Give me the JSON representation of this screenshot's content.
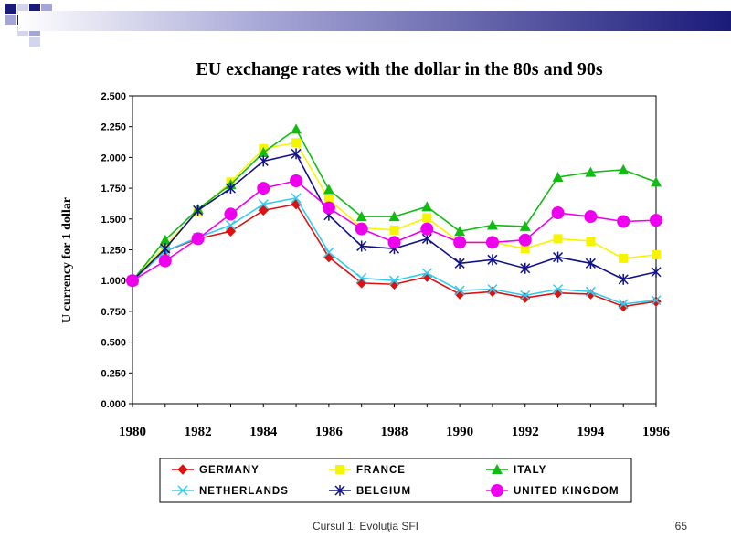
{
  "slide": {
    "footer_text": "Cursul 1: Evoluţia SFI",
    "page_number": "65",
    "theme_colors": {
      "navy": "#1a1a7a",
      "lavender": "#a6a6d6",
      "light": "#d4d4ec"
    }
  },
  "chart_data": {
    "type": "line",
    "title": "EU exchange rates with the dollar in the 80s and 90s",
    "ylabel": "U currency for 1 dollar",
    "xlabel": "",
    "xlim": [
      1980,
      1996
    ],
    "ylim": [
      0,
      2.5
    ],
    "x_ticks": [
      "1980",
      "1982",
      "1984",
      "1986",
      "1988",
      "1990",
      "1992",
      "1994",
      "1996"
    ],
    "y_ticks": [
      "0.000",
      "0.250",
      "0.500",
      "0.750",
      "1.000",
      "1.250",
      "1.500",
      "1.750",
      "2.000",
      "2.250",
      "2.500"
    ],
    "grid": false,
    "legend_position": "bottom",
    "x": [
      1980,
      1981,
      1982,
      1983,
      1984,
      1985,
      1986,
      1987,
      1988,
      1989,
      1990,
      1991,
      1992,
      1993,
      1994,
      1995,
      1996
    ],
    "series": [
      {
        "name": "GERMANY",
        "color": "#dd1111",
        "marker": "diamond",
        "values": [
          1.0,
          1.24,
          1.34,
          1.4,
          1.57,
          1.62,
          1.19,
          0.98,
          0.97,
          1.03,
          0.89,
          0.91,
          0.86,
          0.9,
          0.89,
          0.79,
          0.83
        ]
      },
      {
        "name": "FRANCE",
        "color": "#f5f500",
        "marker": "square",
        "values": [
          1.0,
          1.28,
          1.56,
          1.8,
          2.07,
          2.12,
          1.66,
          1.43,
          1.41,
          1.51,
          1.31,
          1.31,
          1.26,
          1.34,
          1.32,
          1.18,
          1.21
        ]
      },
      {
        "name": "ITALY",
        "color": "#11bb11",
        "marker": "triangle",
        "values": [
          1.0,
          1.33,
          1.58,
          1.78,
          2.04,
          2.23,
          1.74,
          1.52,
          1.52,
          1.6,
          1.4,
          1.45,
          1.44,
          1.84,
          1.88,
          1.9,
          1.8
        ]
      },
      {
        "name": "NETHERLANDS",
        "color": "#33ccee",
        "marker": "cross",
        "values": [
          1.0,
          1.24,
          1.35,
          1.45,
          1.62,
          1.67,
          1.23,
          1.02,
          1.0,
          1.06,
          0.92,
          0.93,
          0.88,
          0.93,
          0.91,
          0.81,
          0.84
        ]
      },
      {
        "name": "BELGIUM",
        "color": "#111188",
        "marker": "asterisk",
        "values": [
          1.0,
          1.26,
          1.57,
          1.75,
          1.97,
          2.03,
          1.53,
          1.28,
          1.26,
          1.34,
          1.14,
          1.17,
          1.1,
          1.19,
          1.14,
          1.01,
          1.07
        ]
      },
      {
        "name": "UNITED KINGDOM",
        "color": "#ee00ee",
        "marker": "circle",
        "values": [
          1.0,
          1.16,
          1.34,
          1.54,
          1.75,
          1.81,
          1.59,
          1.42,
          1.31,
          1.42,
          1.31,
          1.31,
          1.33,
          1.55,
          1.52,
          1.48,
          1.49
        ]
      }
    ]
  }
}
